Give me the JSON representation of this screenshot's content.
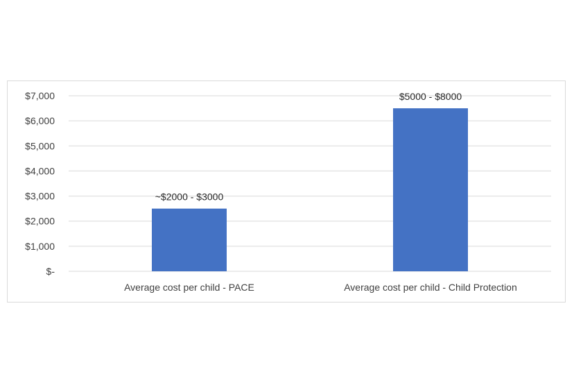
{
  "chart_data": {
    "type": "bar",
    "title": "",
    "xlabel": "",
    "ylabel": "",
    "categories": [
      "Average cost per child - PACE",
      "Average cost per child - Child Protection"
    ],
    "values": [
      2500,
      6500
    ],
    "data_labels": [
      "~$2000 - $3000",
      "$5000 - $8000"
    ],
    "ylim": [
      0,
      7000
    ],
    "yticks": [
      0,
      1000,
      2000,
      3000,
      4000,
      5000,
      6000,
      7000
    ],
    "ytick_labels": [
      "$-",
      "$1,000",
      "$2,000",
      "$3,000",
      "$4,000",
      "$5,000",
      "$6,000",
      "$7,000"
    ],
    "grid": true,
    "legend": "none",
    "bar_color": "#4472c4",
    "grid_color": "#d9d9d9"
  }
}
